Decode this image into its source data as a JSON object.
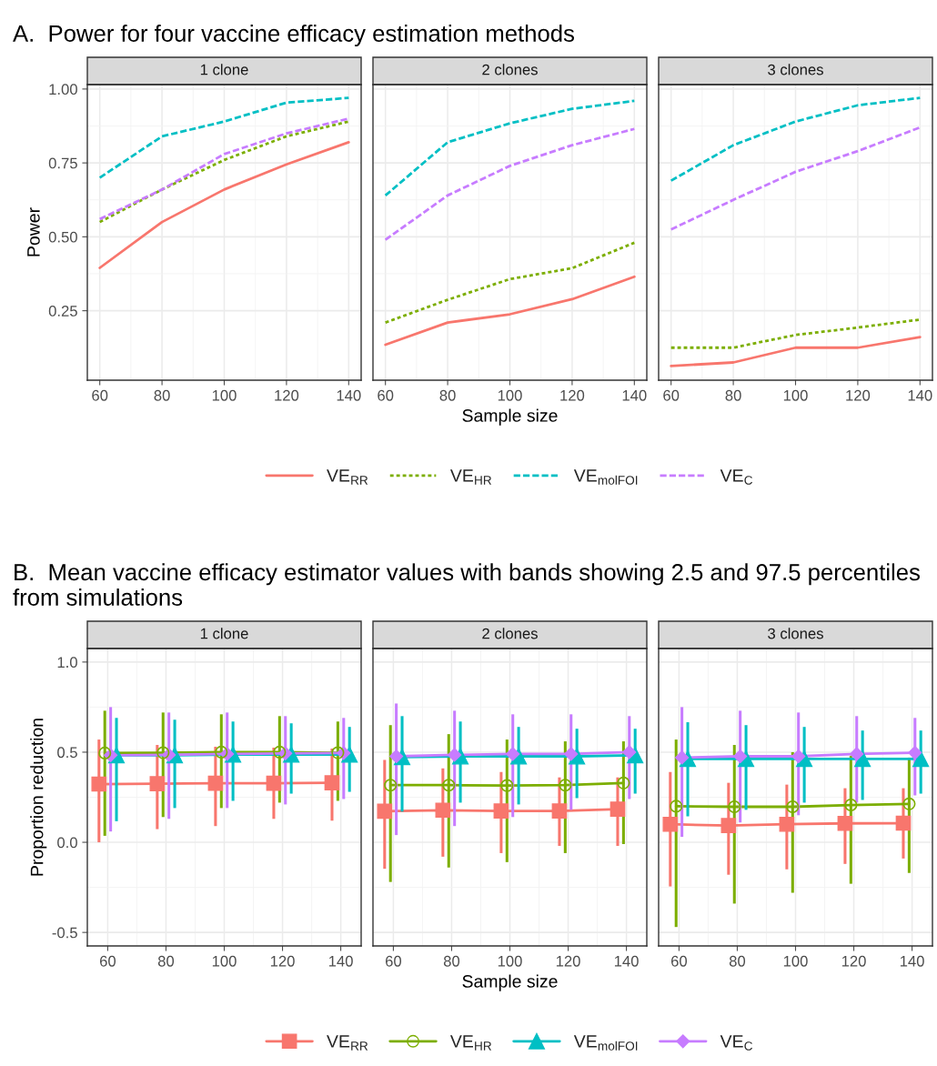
{
  "chart_data": [
    {
      "type": "line",
      "title": "1 clone",
      "subtitle": "A.  Power for four vaccine efficacy estimation methods",
      "ylabel": "Power",
      "x": [
        60,
        80,
        100,
        120,
        140
      ],
      "xlim": [
        56,
        144
      ],
      "xticks": [
        60,
        80,
        100,
        120,
        140
      ],
      "ylim": [
        0.015,
        1.015
      ],
      "yticks": [
        {
          "value": 0.25,
          "label": "0.25"
        },
        {
          "value": 0.5,
          "label": "0.50"
        },
        {
          "value": 0.75,
          "label": "0.75"
        },
        {
          "value": 1.0,
          "label": "1.00"
        }
      ],
      "grid": true,
      "legend": "bottom",
      "series": [
        {
          "name": "VE$_{RR}$",
          "color": "#f8766d",
          "line_style": "solid",
          "values": [
            0.395,
            0.55,
            0.66,
            0.745,
            0.82
          ]
        },
        {
          "name": "VE$_{HR}$",
          "color": "#7cae00",
          "line_style": "dotted",
          "values": [
            0.55,
            0.66,
            0.76,
            0.84,
            0.89
          ]
        },
        {
          "name": "VE$_{molFOI}$",
          "color": "#00bfc4",
          "line_style": "dashed",
          "values": [
            0.7,
            0.84,
            0.89,
            0.954,
            0.97
          ]
        },
        {
          "name": "VE$_{C}$",
          "color": "#c77cff",
          "line_style": "dashed",
          "values": [
            0.56,
            0.66,
            0.78,
            0.85,
            0.9
          ]
        }
      ]
    },
    {
      "type": "line",
      "title": "2 clones",
      "xlabel": "Sample size",
      "x": [
        60,
        80,
        100,
        120,
        140
      ],
      "xlim": [
        56,
        144
      ],
      "xticks": [
        60,
        80,
        100,
        120,
        140
      ],
      "ylim": [
        0.015,
        1.015
      ],
      "yticks": [
        {
          "value": 0.25,
          "label": null
        },
        {
          "value": 0.5,
          "label": null
        },
        {
          "value": 0.75,
          "label": null
        },
        {
          "value": 1.0,
          "label": null
        }
      ],
      "grid": true,
      "tick_labels": "x",
      "series": [
        {
          "color": "#f8766d",
          "line_style": "solid",
          "values": [
            0.135,
            0.21,
            0.238,
            0.289,
            0.365
          ]
        },
        {
          "color": "#7cae00",
          "line_style": "dotted",
          "values": [
            0.21,
            0.287,
            0.357,
            0.394,
            0.48
          ]
        },
        {
          "color": "#00bfc4",
          "line_style": "dashed",
          "values": [
            0.64,
            0.82,
            0.884,
            0.933,
            0.96
          ]
        },
        {
          "color": "#c77cff",
          "line_style": "dashed",
          "values": [
            0.49,
            0.64,
            0.74,
            0.81,
            0.865
          ]
        }
      ]
    },
    {
      "type": "line",
      "title": "3 clones",
      "x": [
        60,
        80,
        100,
        120,
        140
      ],
      "xlim": [
        56,
        144
      ],
      "xticks": [
        60,
        80,
        100,
        120,
        140
      ],
      "ylim": [
        0.015,
        1.015
      ],
      "yticks": [
        {
          "value": 0.25,
          "label": null
        },
        {
          "value": 0.5,
          "label": null
        },
        {
          "value": 0.75,
          "label": null
        },
        {
          "value": 1.0,
          "label": null
        }
      ],
      "grid": true,
      "tick_labels": "x",
      "series": [
        {
          "color": "#f8766d",
          "line_style": "solid",
          "values": [
            0.063,
            0.075,
            0.125,
            0.125,
            0.161
          ]
        },
        {
          "color": "#7cae00",
          "line_style": "dotted",
          "values": [
            0.125,
            0.125,
            0.168,
            0.193,
            0.22
          ]
        },
        {
          "color": "#00bfc4",
          "line_style": "dashed",
          "values": [
            0.69,
            0.81,
            0.89,
            0.945,
            0.97
          ]
        },
        {
          "color": "#c77cff",
          "line_style": "dashed",
          "values": [
            0.525,
            0.625,
            0.72,
            0.79,
            0.87
          ]
        }
      ]
    },
    {
      "type": "line",
      "title": "1 clone",
      "subtitle": "B.  Mean vaccine efficacy estimator values with bands showing 2.5 and 97.5 percentiles from simulations",
      "ylabel": "Proportion reduction",
      "xlim": [
        53,
        147
      ],
      "xticks": [
        60,
        80,
        100,
        120,
        140
      ],
      "ylim": [
        -0.575,
        1.075
      ],
      "yticks": [
        {
          "value": -0.5,
          "label": "-0.5"
        },
        {
          "value": 0.0,
          "label": "0.0"
        },
        {
          "value": 0.5,
          "label": "0.5"
        },
        {
          "value": 1.0,
          "label": "1.0"
        }
      ],
      "grid": true,
      "legend": "bottom",
      "series": [
        {
          "name": "VE$_{RR}$",
          "color": "#f8766d",
          "marker": "square",
          "x": [
            57,
            77,
            97,
            117,
            137
          ],
          "values": [
            0.323,
            0.325,
            0.328,
            0.328,
            0.33
          ],
          "errors": [
            [
              0.0,
              0.57
            ],
            [
              0.073,
              0.54
            ],
            [
              0.09,
              0.53
            ],
            [
              0.13,
              0.525
            ],
            [
              0.12,
              0.52
            ]
          ]
        },
        {
          "name": "VE$_{HR}$",
          "color": "#7cae00",
          "marker": "circle",
          "x": [
            59,
            79,
            99,
            119,
            139
          ],
          "values": [
            0.495,
            0.497,
            0.5,
            0.5,
            0.497
          ],
          "errors": [
            [
              0.036,
              0.73
            ],
            [
              0.14,
              0.72
            ],
            [
              0.19,
              0.71
            ],
            [
              0.22,
              0.7
            ],
            [
              0.23,
              0.67
            ]
          ]
        },
        {
          "name": "VE$_{molFOI}$",
          "color": "#00bfc4",
          "marker": "triangle",
          "x": [
            63,
            83,
            103,
            123,
            143
          ],
          "values": [
            0.483,
            0.483,
            0.487,
            0.487,
            0.487
          ],
          "errors": [
            [
              0.117,
              0.69
            ],
            [
              0.19,
              0.68
            ],
            [
              0.23,
              0.67
            ],
            [
              0.27,
              0.66
            ],
            [
              0.28,
              0.64
            ]
          ]
        },
        {
          "name": "VE$_{C}$",
          "color": "#c77cff",
          "marker": "diamond",
          "x": [
            61,
            81,
            101,
            121,
            141
          ],
          "values": [
            0.483,
            0.485,
            0.49,
            0.493,
            0.495
          ],
          "errors": [
            [
              0.06,
              0.75
            ],
            [
              0.13,
              0.72
            ],
            [
              0.19,
              0.72
            ],
            [
              0.21,
              0.7
            ],
            [
              0.24,
              0.69
            ]
          ]
        }
      ]
    },
    {
      "type": "line",
      "title": "2 clones",
      "xlabel": "Sample size",
      "xlim": [
        53,
        147
      ],
      "xticks": [
        60,
        80,
        100,
        120,
        140
      ],
      "ylim": [
        -0.575,
        1.075
      ],
      "yticks": [
        {
          "value": -0.5,
          "label": null
        },
        {
          "value": 0.0,
          "label": null
        },
        {
          "value": 0.5,
          "label": null
        },
        {
          "value": 1.0,
          "label": null
        }
      ],
      "grid": true,
      "tick_labels": "x",
      "series": [
        {
          "color": "#f8766d",
          "marker": "square",
          "x": [
            57,
            77,
            97,
            117,
            137
          ],
          "values": [
            0.172,
            0.178,
            0.174,
            0.174,
            0.184
          ],
          "errors": [
            [
              -0.147,
              0.457
            ],
            [
              -0.08,
              0.41
            ],
            [
              -0.06,
              0.39
            ],
            [
              -0.02,
              0.36
            ],
            [
              -0.02,
              0.36
            ]
          ]
        },
        {
          "color": "#7cae00",
          "marker": "circle",
          "x": [
            59,
            79,
            99,
            119,
            139
          ],
          "values": [
            0.317,
            0.317,
            0.315,
            0.317,
            0.329
          ],
          "errors": [
            [
              -0.22,
              0.65
            ],
            [
              -0.14,
              0.6
            ],
            [
              -0.11,
              0.57
            ],
            [
              -0.06,
              0.56
            ],
            [
              -0.01,
              0.56
            ]
          ]
        },
        {
          "color": "#00bfc4",
          "marker": "triangle",
          "x": [
            63,
            83,
            103,
            123,
            143
          ],
          "values": [
            0.473,
            0.477,
            0.477,
            0.477,
            0.483
          ],
          "errors": [
            [
              0.17,
              0.7
            ],
            [
              0.22,
              0.67
            ],
            [
              0.21,
              0.64
            ],
            [
              0.245,
              0.63
            ],
            [
              0.27,
              0.63
            ]
          ]
        },
        {
          "color": "#c77cff",
          "marker": "diamond",
          "x": [
            61,
            81,
            101,
            121,
            141
          ],
          "values": [
            0.477,
            0.485,
            0.49,
            0.49,
            0.5
          ],
          "errors": [
            [
              0.04,
              0.77
            ],
            [
              0.09,
              0.73
            ],
            [
              0.14,
              0.71
            ],
            [
              0.18,
              0.71
            ],
            [
              0.24,
              0.7
            ]
          ]
        }
      ]
    },
    {
      "type": "line",
      "title": "3 clones",
      "xlim": [
        53,
        147
      ],
      "xticks": [
        60,
        80,
        100,
        120,
        140
      ],
      "ylim": [
        -0.575,
        1.075
      ],
      "yticks": [
        {
          "value": -0.5,
          "label": null
        },
        {
          "value": 0.0,
          "label": null
        },
        {
          "value": 0.5,
          "label": null
        },
        {
          "value": 1.0,
          "label": null
        }
      ],
      "grid": true,
      "tick_labels": "x",
      "series": [
        {
          "color": "#f8766d",
          "marker": "square",
          "x": [
            57,
            77,
            97,
            117,
            137
          ],
          "values": [
            0.1,
            0.093,
            0.1,
            0.105,
            0.106
          ],
          "errors": [
            [
              -0.245,
              0.39
            ],
            [
              -0.18,
              0.33
            ],
            [
              -0.15,
              0.32
            ],
            [
              -0.12,
              0.3
            ],
            [
              -0.09,
              0.3
            ]
          ]
        },
        {
          "color": "#7cae00",
          "marker": "circle",
          "x": [
            59,
            79,
            99,
            119,
            139
          ],
          "values": [
            0.2,
            0.197,
            0.197,
            0.207,
            0.213
          ],
          "errors": [
            [
              -0.47,
              0.57
            ],
            [
              -0.34,
              0.54
            ],
            [
              -0.28,
              0.5
            ],
            [
              -0.23,
              0.48
            ],
            [
              -0.17,
              0.47
            ]
          ]
        },
        {
          "color": "#00bfc4",
          "marker": "triangle",
          "x": [
            63,
            83,
            103,
            123,
            143
          ],
          "values": [
            0.463,
            0.463,
            0.463,
            0.463,
            0.463
          ],
          "errors": [
            [
              0.144,
              0.666
            ],
            [
              0.18,
              0.65
            ],
            [
              0.22,
              0.64
            ],
            [
              0.235,
              0.62
            ],
            [
              0.27,
              0.62
            ]
          ]
        },
        {
          "color": "#c77cff",
          "marker": "diamond",
          "x": [
            61,
            81,
            101,
            121,
            141
          ],
          "values": [
            0.47,
            0.477,
            0.477,
            0.49,
            0.497
          ],
          "errors": [
            [
              0.03,
              0.75
            ],
            [
              0.11,
              0.73
            ],
            [
              0.15,
              0.72
            ],
            [
              0.22,
              0.7
            ],
            [
              0.26,
              0.69
            ]
          ]
        }
      ]
    }
  ]
}
